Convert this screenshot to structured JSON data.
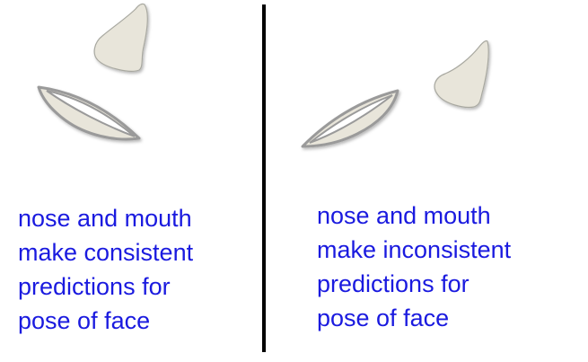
{
  "colors": {
    "shape_fill": "#e8e5da",
    "shape_stroke": "#9a9a9a",
    "text": "#1a1adf",
    "divider": "#000000"
  },
  "left_panel": {
    "parts": [
      "nose-shape",
      "mouth-shape"
    ],
    "caption_lines": [
      "nose and mouth",
      "make consistent",
      "predictions for",
      "pose of face"
    ]
  },
  "right_panel": {
    "parts": [
      "nose-shape",
      "mouth-shape"
    ],
    "caption_lines": [
      "nose and mouth",
      "make inconsistent",
      "predictions for",
      "pose of face"
    ]
  }
}
